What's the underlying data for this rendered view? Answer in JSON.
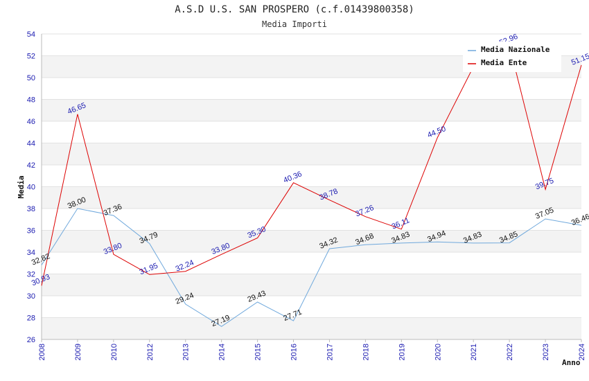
{
  "chart_data": {
    "type": "line",
    "title": "A.S.D U.S. SAN PROSPERO (c.f.01439800358)",
    "subtitle": "Media Importi",
    "xlabel": "Anno",
    "ylabel": "Media",
    "ylim": [
      26,
      54
    ],
    "ystep": 2,
    "yticks": [
      "26",
      "28",
      "30",
      "32",
      "34",
      "36",
      "38",
      "40",
      "42",
      "44",
      "46",
      "48",
      "50",
      "52",
      "54"
    ],
    "categories": [
      "2008",
      "2009",
      "2010",
      "2012",
      "2013",
      "2014",
      "2015",
      "2016",
      "2017",
      "2018",
      "2019",
      "2020",
      "2021",
      "2022",
      "2023",
      "2024"
    ],
    "grid": "horizontal alternating bands",
    "legend_position": "top-right",
    "series": [
      {
        "name": "Media Nazionale",
        "color": "#6fa8dc",
        "values": [
          32.82,
          38.0,
          37.36,
          34.79,
          29.24,
          27.19,
          29.43,
          27.71,
          34.32,
          34.68,
          34.83,
          34.94,
          34.83,
          34.85,
          37.05,
          36.46
        ],
        "labels": [
          "32.82",
          "38.00",
          "37.36",
          "34.79",
          "29.24",
          "27.19",
          "29.43",
          "27.71",
          "34.32",
          "34.68",
          "34.83",
          "34.94",
          "34.83",
          "34.85",
          "37.05",
          "36.46"
        ]
      },
      {
        "name": "Media Ente",
        "color": "#dd0000",
        "values": [
          30.93,
          46.65,
          33.8,
          31.95,
          32.24,
          33.8,
          35.3,
          40.36,
          38.78,
          37.26,
          36.11,
          44.5,
          51.0,
          52.96,
          39.75,
          51.15
        ],
        "labels": [
          "30.93",
          "46.65",
          "33.80",
          "31.95",
          "32.24",
          "33.80",
          "35.30",
          "40.36",
          "38.78",
          "37.26",
          "36.11",
          "44.50",
          null,
          "52.96",
          "39.75",
          "51.15"
        ]
      }
    ]
  }
}
